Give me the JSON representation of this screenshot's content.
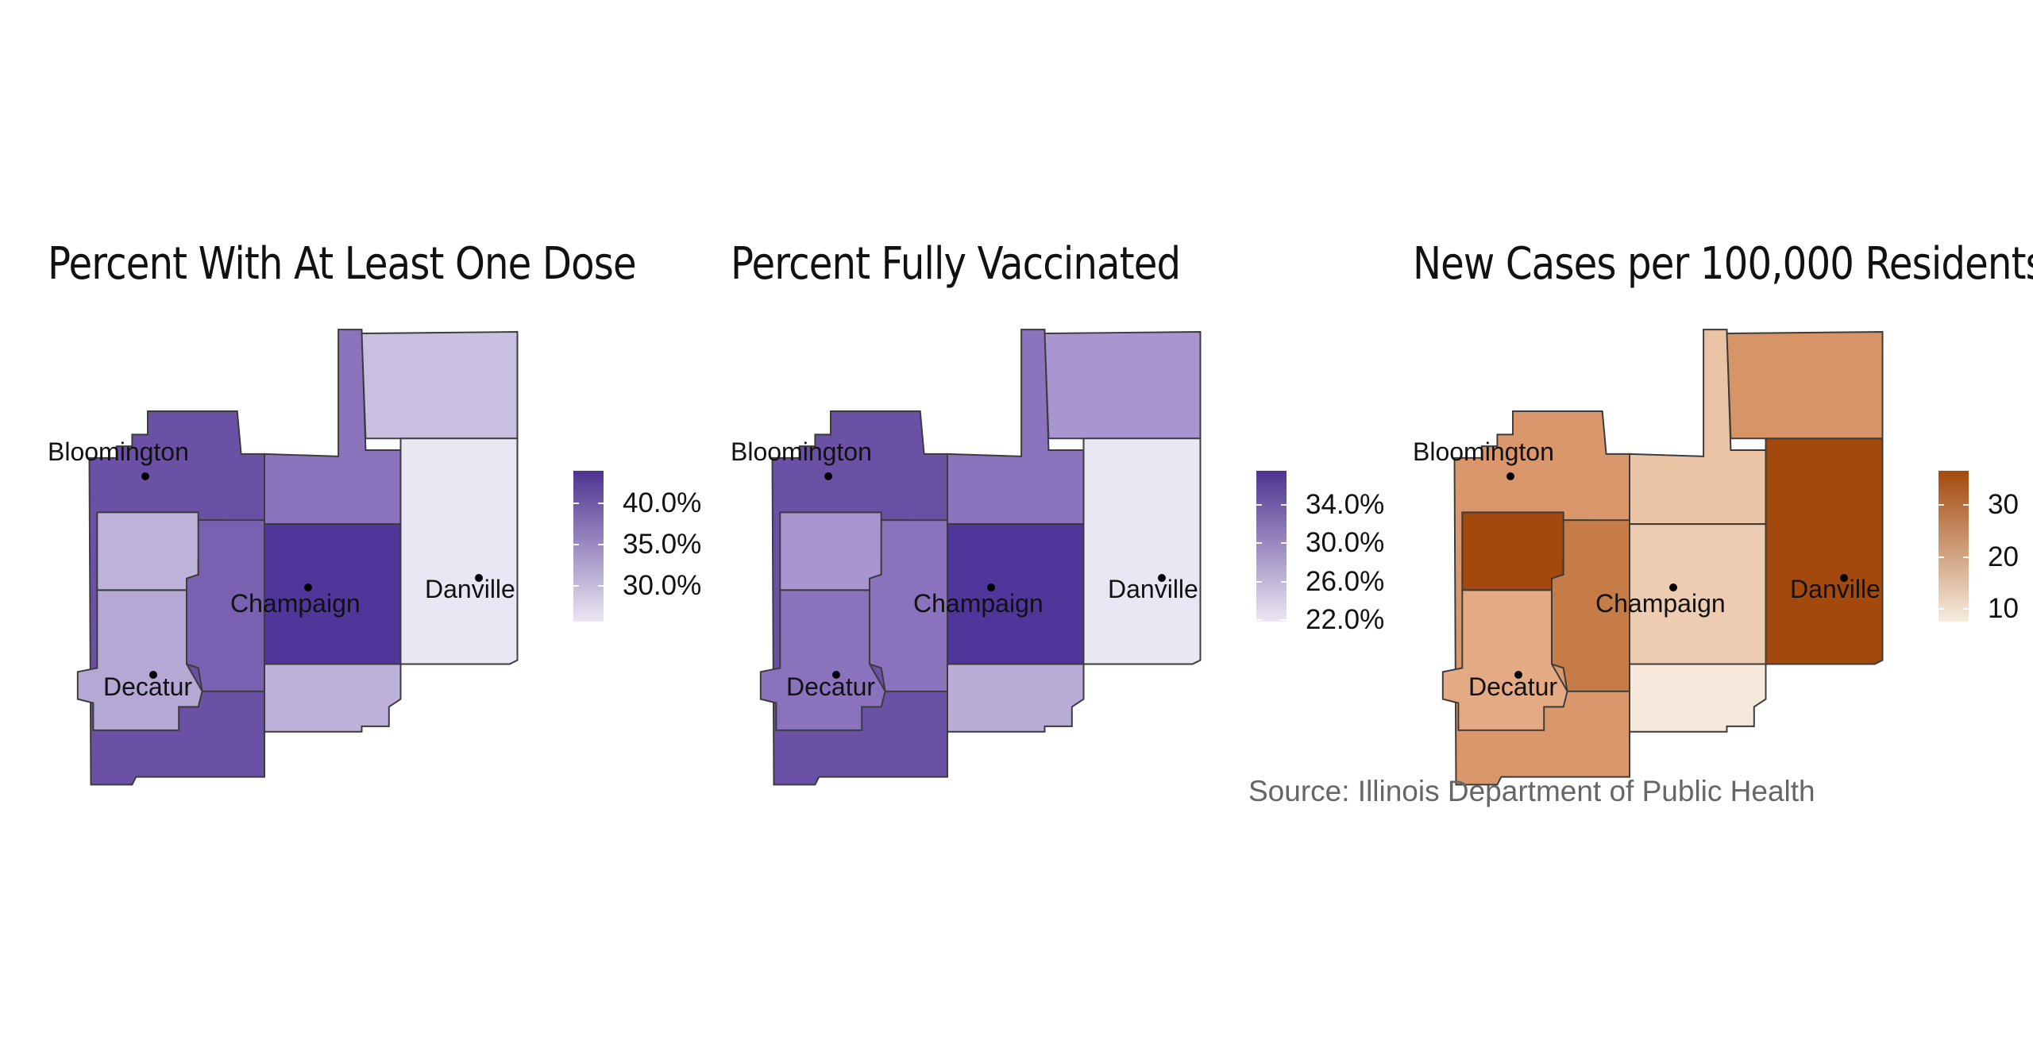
{
  "panels": [
    {
      "id": "first-dose",
      "title": "Percent With At Least One Dose",
      "legend": {
        "colors": [
          "#4f3391",
          "#ebe6f2"
        ],
        "labels": [
          "40.0%",
          "35.0%",
          "30.0%"
        ]
      },
      "cities": [
        "Bloomington",
        "Champaign",
        "Danville",
        "Decatur"
      ],
      "county_fills": {
        "mclean": "#6b51a6",
        "ford": "#8b73be",
        "vermilion_north": "#c9bfe0",
        "champaign": "#50369a",
        "vermilion": "#ebe6f3",
        "dewitt": "#bfb3dc",
        "piatt": "#7a60b1",
        "macon": "#b5a8d4",
        "douglas": "#bfb2da"
      }
    },
    {
      "id": "fully-vaccinated",
      "title": "Percent Fully Vaccinated",
      "legend": {
        "colors": [
          "#4f3391",
          "#ebe6f2"
        ],
        "labels": [
          "34.0%",
          "30.0%",
          "26.0%",
          "22.0%"
        ]
      },
      "cities": [
        "Bloomington",
        "Champaign",
        "Danville",
        "Decatur"
      ],
      "county_fills": {
        "mclean": "#6b51a6",
        "ford": "#8b73be",
        "vermilion_north": "#a995cf",
        "champaign": "#50369a",
        "vermilion": "#ebe6f3",
        "dewitt": "#a995cf",
        "piatt": "#8a72bd",
        "macon": "#8a72bd",
        "douglas": "#b9acd7"
      }
    },
    {
      "id": "new-cases",
      "title": "New Cases per 100,000 Residents",
      "legend": {
        "colors": [
          "#a4490d",
          "#f6ebde"
        ],
        "labels": [
          "30",
          "20",
          "10"
        ]
      },
      "cities": [
        "Bloomington",
        "Champaign",
        "Danville",
        "Decatur"
      ],
      "county_fills": {
        "mclean": "#d9976b",
        "ford": "#eac4a4",
        "vermilion_north": "#d79467",
        "champaign": "#edccb1",
        "vermilion": "#a4490d",
        "dewitt": "#a4490d",
        "piatt": "#c67c47",
        "macon": "#e3aa84",
        "douglas": "#f6e9db"
      }
    }
  ],
  "source": "Source: Illinois Department of Public Health"
}
